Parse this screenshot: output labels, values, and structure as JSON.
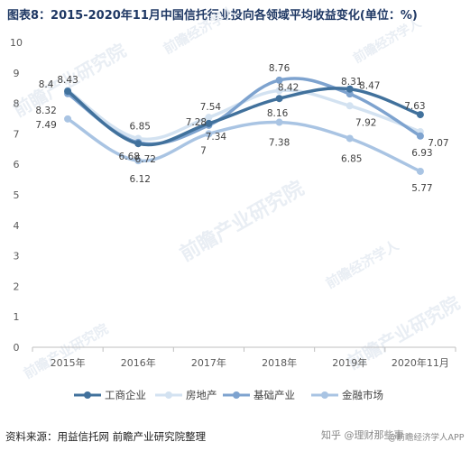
{
  "title": "图表8：2015-2020年11月中国信托行业投向各领域平均收益变化(单位：%)",
  "source": "资料来源：用益信托网 前瞻产业研究院整理",
  "watermarks": [
    "前瞻产业研究院",
    "前瞻经济学人"
  ],
  "footer_watermark": "知乎 @理财那些事",
  "footer_app": "@前瞻经济学人APP",
  "chart_data": {
    "type": "line",
    "title": "图表8：2015-2020年11月中国信托行业投向各领域平均收益变化(单位：%)",
    "categories": [
      "2015年",
      "2016年",
      "2017年",
      "2018年",
      "2019年",
      "2020年11月"
    ],
    "ylim": [
      0,
      10
    ],
    "yticks": [
      0,
      1,
      2,
      3,
      4,
      5,
      6,
      7,
      8,
      9,
      10
    ],
    "grid": false,
    "legend_position": "bottom",
    "smooth": true,
    "series": [
      {
        "name": "工商企业",
        "color": "#41719c",
        "values": [
          8.4,
          6.68,
          7.34,
          8.16,
          8.47,
          7.63
        ]
      },
      {
        "name": "房地产",
        "color": "#d3e2f1",
        "values": [
          8.43,
          6.85,
          7.54,
          8.42,
          7.92,
          7.07
        ]
      },
      {
        "name": "基础产业",
        "color": "#7ea3cf",
        "values": [
          8.32,
          6.72,
          7.28,
          8.76,
          8.31,
          6.93
        ]
      },
      {
        "name": "金融市场",
        "color": "#a9c4e3",
        "values": [
          7.49,
          6.12,
          7,
          7.38,
          6.85,
          5.77
        ]
      }
    ],
    "data_labels": [
      [
        "8.4",
        "6.68",
        "7.34",
        "8.16",
        "8.47",
        "7.63"
      ],
      [
        "8.43",
        "6.85",
        "7.54",
        "8.42",
        "7.92",
        "7.07"
      ],
      [
        "8.32",
        "6.72",
        "7.28",
        "8.76",
        "8.31",
        "6.93"
      ],
      [
        "7.49",
        "6.12",
        "7",
        "7.38",
        "6.85",
        "5.77"
      ]
    ]
  }
}
